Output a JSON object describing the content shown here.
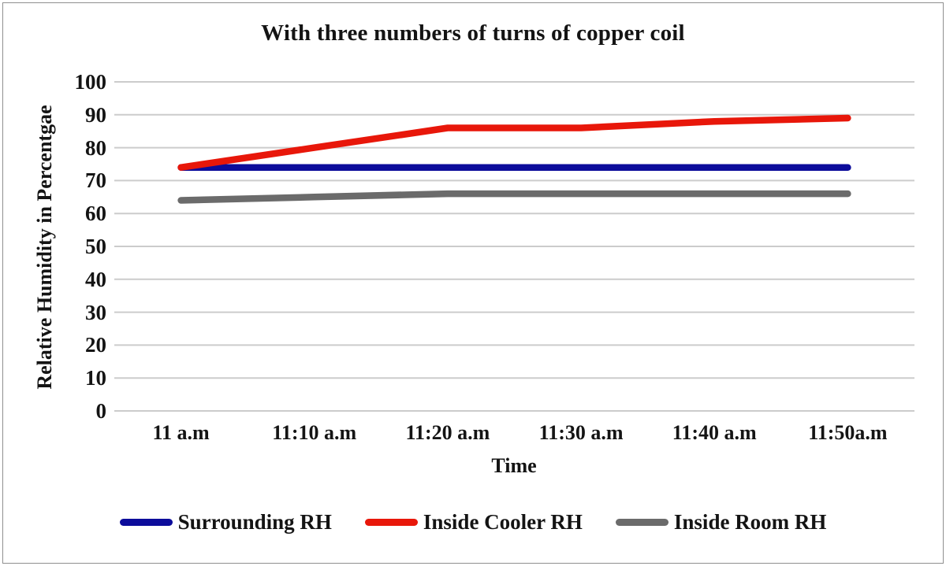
{
  "chart_data": {
    "type": "line",
    "title": "With three numbers of turns of copper coil",
    "xlabel": "Time",
    "ylabel": "Relative Humidity in Percentgae",
    "categories": [
      "11 a.m",
      "11:10 a.m",
      "11:20 a.m",
      "11:30 a.m",
      "11:40 a.m",
      "11:50a.m"
    ],
    "ylim": [
      0,
      100
    ],
    "ytick_step": 10,
    "grid": "horizontal-only",
    "gridline_color": "#cccccc",
    "legend_position": "bottom-center",
    "series": [
      {
        "name": "Surrounding RH",
        "color": "#0c0c9b",
        "values": [
          74,
          74,
          74,
          74,
          74,
          74
        ]
      },
      {
        "name": "Inside Cooler RH",
        "color": "#e8170a",
        "values": [
          74,
          80,
          86,
          86,
          88,
          89
        ]
      },
      {
        "name": "Inside Room RH",
        "color": "#6b6b6b",
        "values": [
          64,
          65,
          66,
          66,
          66,
          66
        ]
      }
    ]
  }
}
